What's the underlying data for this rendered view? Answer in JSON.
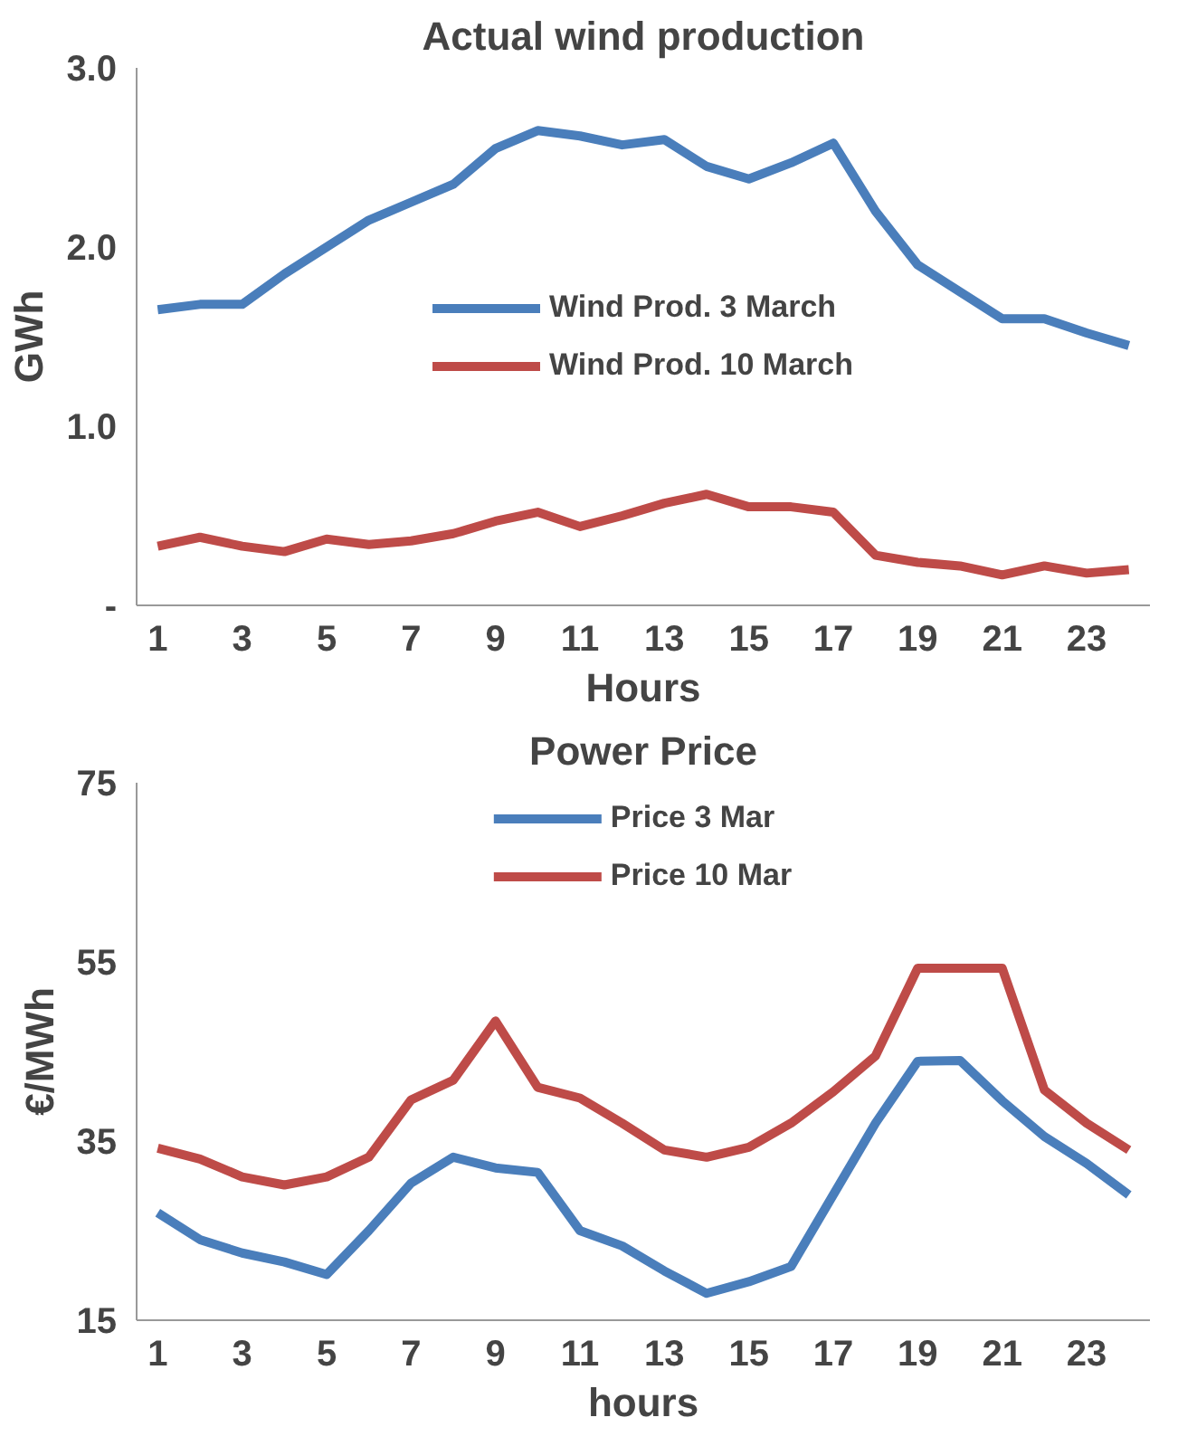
{
  "chart_data": [
    {
      "type": "line",
      "title": "Actual wind production",
      "xlabel": "Hours",
      "ylabel": "GWh",
      "x": [
        1,
        2,
        3,
        4,
        5,
        6,
        7,
        8,
        9,
        10,
        11,
        12,
        13,
        14,
        15,
        16,
        17,
        18,
        19,
        20,
        21,
        22,
        23,
        24
      ],
      "xlim": [
        0.5,
        24.5
      ],
      "xticks": [
        1,
        3,
        5,
        7,
        9,
        11,
        13,
        15,
        17,
        19,
        21,
        23
      ],
      "ylim": [
        0,
        3
      ],
      "yticks": [
        {
          "value": 0,
          "label": "-"
        },
        {
          "value": 1,
          "label": "1.0"
        },
        {
          "value": 2,
          "label": "2.0"
        },
        {
          "value": 3,
          "label": "3.0"
        }
      ],
      "grid": false,
      "legend": "center",
      "marker": "none",
      "series": [
        {
          "name": "Wind Prod. 3 March",
          "color": "#4a7ebb",
          "values": [
            1.65,
            1.68,
            1.68,
            1.85,
            2.0,
            2.15,
            2.25,
            2.35,
            2.55,
            2.65,
            2.62,
            2.57,
            2.6,
            2.45,
            2.38,
            2.47,
            2.58,
            2.2,
            1.9,
            1.75,
            1.6,
            1.6,
            1.52,
            1.45
          ]
        },
        {
          "name": "Wind Prod. 10 March",
          "color": "#be4b48",
          "values": [
            0.33,
            0.38,
            0.33,
            0.3,
            0.37,
            0.34,
            0.36,
            0.4,
            0.47,
            0.52,
            0.44,
            0.5,
            0.57,
            0.62,
            0.55,
            0.55,
            0.52,
            0.28,
            0.24,
            0.22,
            0.17,
            0.22,
            0.18,
            0.2
          ]
        }
      ]
    },
    {
      "type": "line",
      "title": "Power Price",
      "xlabel": "hours",
      "ylabel": "€/MWh",
      "x": [
        1,
        2,
        3,
        4,
        5,
        6,
        7,
        8,
        9,
        10,
        11,
        12,
        13,
        14,
        15,
        16,
        17,
        18,
        19,
        20,
        21,
        22,
        23,
        24
      ],
      "xlim": [
        0.5,
        24.5
      ],
      "xticks": [
        1,
        3,
        5,
        7,
        9,
        11,
        13,
        15,
        17,
        19,
        21,
        23
      ],
      "ylim": [
        15,
        75
      ],
      "yticks": [
        15,
        35,
        55,
        75
      ],
      "grid": false,
      "legend": "top",
      "marker": "none",
      "series": [
        {
          "name": "Price 3 Mar",
          "color": "#4a7ebb",
          "values": [
            27,
            24,
            22.5,
            21.5,
            20.1,
            25,
            30.3,
            33.2,
            32,
            31.5,
            25,
            23.3,
            20.5,
            18,
            19.3,
            21,
            29,
            37,
            43.9,
            44,
            39.5,
            35.5,
            32.5,
            29
          ]
        },
        {
          "name": "Price 10 Mar",
          "color": "#be4b48",
          "values": [
            34.2,
            33,
            31,
            30.1,
            31,
            33.2,
            39.6,
            41.8,
            48.4,
            41,
            39.8,
            37,
            34,
            33.2,
            34.3,
            37,
            40.5,
            44.5,
            54.3,
            54.3,
            54.3,
            40.7,
            37,
            34
          ]
        }
      ]
    }
  ]
}
